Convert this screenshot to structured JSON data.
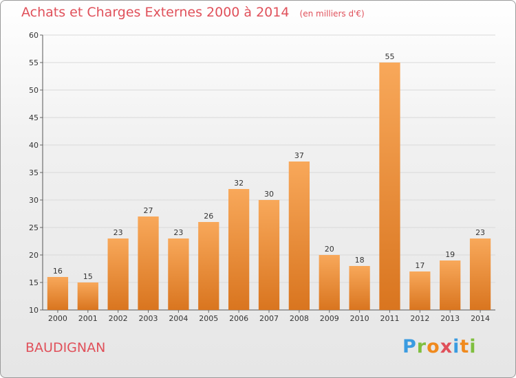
{
  "chart_data": {
    "type": "bar",
    "title": "Achats et Charges Externes 2000 à 2014",
    "subtitle": "(en milliers d'€)",
    "categories": [
      "2000",
      "2001",
      "2002",
      "2003",
      "2004",
      "2005",
      "2006",
      "2007",
      "2008",
      "2009",
      "2010",
      "2011",
      "2012",
      "2013",
      "2014"
    ],
    "values": [
      16,
      15,
      23,
      27,
      23,
      26,
      32,
      30,
      37,
      20,
      18,
      55,
      17,
      19,
      23
    ],
    "ylim": [
      10,
      60
    ],
    "yticks": [
      10,
      15,
      20,
      25,
      30,
      35,
      40,
      45,
      50,
      55,
      60
    ],
    "grid": true,
    "legend": "none"
  },
  "colors": {
    "bar_top": "#f8a85a",
    "bar_bottom": "#d9751f",
    "title": "#e0505a",
    "grid": "#d9d9d9"
  },
  "footer": {
    "commune": "BAUDIGNAN"
  }
}
